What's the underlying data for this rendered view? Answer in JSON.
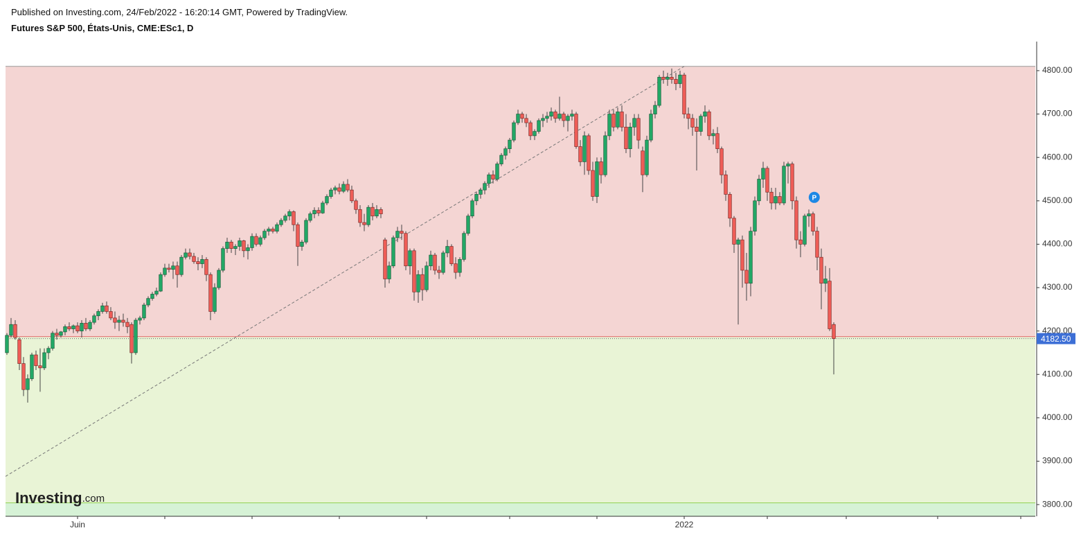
{
  "header": {
    "published": "Published on Investing.com, 24/Feb/2022 - 16:20:14 GMT, Powered by TradingView.",
    "instrument": "Futures S&P 500, États-Unis, CME:ESc1, D"
  },
  "logo": {
    "brand": "Investing",
    "suffix": ".com"
  },
  "chart_data": {
    "type": "candlestick",
    "open": [
      4150,
      4190,
      4215,
      4180,
      4125,
      4065,
      4090,
      4145,
      4120,
      4115,
      4150,
      4160,
      4195,
      4190,
      4198,
      4210,
      4205,
      4212,
      4200,
      4218,
      4205,
      4220,
      4235,
      4245,
      4258,
      4245,
      4230,
      4220,
      4225,
      4220,
      4215,
      4150,
      4225,
      4230,
      4260,
      4275,
      4285,
      4292,
      4330,
      4345,
      4342,
      4350,
      4330,
      4370,
      4380,
      4372,
      4360,
      4355,
      4365,
      4330,
      4245,
      4300,
      4340,
      4390,
      4405,
      4390,
      4395,
      4408,
      4385,
      4392,
      4418,
      4400,
      4415,
      4430,
      4435,
      4430,
      4445,
      4455,
      4465,
      4475,
      4445,
      4395,
      4405,
      4455,
      4470,
      4478,
      4472,
      4495,
      4510,
      4525,
      4530,
      4522,
      4538,
      4525,
      4500,
      4480,
      4450,
      4445,
      4485,
      4465,
      4480,
      4410,
      4320,
      4350,
      4415,
      4430,
      4425,
      4350,
      4385,
      4290,
      4330,
      4295,
      4350,
      4375,
      4340,
      4335,
      4380,
      4395,
      4355,
      4335,
      4365,
      4425,
      4465,
      4500,
      4515,
      4525,
      4540,
      4560,
      4550,
      4585,
      4605,
      4620,
      4640,
      4680,
      4700,
      4690,
      4680,
      4650,
      4660,
      4685,
      4690,
      4695,
      4705,
      4690,
      4700,
      4685,
      4695,
      4700,
      4625,
      4590,
      4650,
      4570,
      4510,
      4590,
      4560,
      4650,
      4700,
      4670,
      4705,
      4670,
      4620,
      4670,
      4690,
      4615,
      4560,
      4640,
      4700,
      4720,
      4785,
      4780,
      4785,
      4780,
      4770,
      4790,
      4700,
      4690,
      4670,
      4660,
      4695,
      4705,
      4650,
      4655,
      4620,
      4560,
      4515,
      4460,
      4400,
      4410,
      4340,
      4310,
      4430,
      4500,
      4550,
      4575,
      4520,
      4495,
      4510,
      4495,
      4580,
      4585,
      4500,
      4410,
      4400,
      4465,
      4470,
      4430,
      4370,
      4310,
      4315,
      4215
    ],
    "high": [
      4195,
      4230,
      4225,
      4185,
      4140,
      4100,
      4150,
      4155,
      4160,
      4160,
      4165,
      4200,
      4205,
      4200,
      4215,
      4220,
      4215,
      4220,
      4225,
      4230,
      4225,
      4240,
      4250,
      4265,
      4268,
      4255,
      4245,
      4235,
      4240,
      4230,
      4220,
      4230,
      4235,
      4265,
      4280,
      4290,
      4300,
      4335,
      4355,
      4355,
      4360,
      4360,
      4375,
      4390,
      4390,
      4380,
      4370,
      4375,
      4370,
      4335,
      4310,
      4345,
      4395,
      4415,
      4410,
      4400,
      4415,
      4410,
      4400,
      4425,
      4425,
      4420,
      4435,
      4440,
      4440,
      4450,
      4460,
      4470,
      4480,
      4478,
      4450,
      4410,
      4460,
      4475,
      4485,
      4485,
      4500,
      4515,
      4530,
      4535,
      4540,
      4545,
      4550,
      4535,
      4505,
      4490,
      4470,
      4490,
      4495,
      4490,
      4485,
      4415,
      4360,
      4420,
      4440,
      4445,
      4430,
      4390,
      4390,
      4340,
      4345,
      4360,
      4385,
      4380,
      4350,
      4385,
      4410,
      4400,
      4370,
      4370,
      4430,
      4470,
      4505,
      4520,
      4530,
      4545,
      4565,
      4570,
      4590,
      4610,
      4625,
      4645,
      4685,
      4710,
      4705,
      4700,
      4685,
      4665,
      4690,
      4700,
      4705,
      4715,
      4710,
      4740,
      4705,
      4700,
      4710,
      4705,
      4640,
      4660,
      4655,
      4590,
      4600,
      4600,
      4660,
      4710,
      4710,
      4715,
      4720,
      4700,
      4680,
      4700,
      4700,
      4625,
      4650,
      4710,
      4730,
      4790,
      4800,
      4795,
      4805,
      4795,
      4800,
      4795,
      4715,
      4700,
      4690,
      4700,
      4720,
      4710,
      4665,
      4670,
      4625,
      4570,
      4520,
      4465,
      4415,
      4420,
      4380,
      4440,
      4510,
      4560,
      4590,
      4580,
      4530,
      4530,
      4520,
      4590,
      4590,
      4590,
      4510,
      4430,
      4470,
      4480,
      4475,
      4440,
      4390,
      4350,
      4345,
      4220
    ],
    "low": [
      4145,
      4185,
      4180,
      4110,
      4050,
      4035,
      4085,
      4110,
      4060,
      4110,
      4135,
      4155,
      4180,
      4185,
      4190,
      4200,
      4195,
      4195,
      4185,
      4200,
      4200,
      4215,
      4225,
      4240,
      4240,
      4225,
      4205,
      4200,
      4210,
      4195,
      4125,
      4145,
      4215,
      4225,
      4255,
      4270,
      4280,
      4290,
      4325,
      4335,
      4320,
      4300,
      4325,
      4365,
      4365,
      4355,
      4340,
      4345,
      4315,
      4225,
      4240,
      4295,
      4335,
      4380,
      4380,
      4375,
      4385,
      4370,
      4365,
      4385,
      4395,
      4395,
      4410,
      4420,
      4425,
      4425,
      4440,
      4450,
      4455,
      4430,
      4350,
      4385,
      4400,
      4450,
      4460,
      4465,
      4470,
      4490,
      4505,
      4515,
      4515,
      4518,
      4520,
      4495,
      4470,
      4440,
      4430,
      4440,
      4455,
      4460,
      4460,
      4300,
      4310,
      4345,
      4405,
      4410,
      4340,
      4330,
      4270,
      4265,
      4270,
      4290,
      4340,
      4330,
      4320,
      4330,
      4370,
      4350,
      4320,
      4325,
      4360,
      4420,
      4460,
      4490,
      4505,
      4515,
      4530,
      4540,
      4545,
      4580,
      4595,
      4610,
      4635,
      4675,
      4680,
      4670,
      4640,
      4640,
      4655,
      4670,
      4680,
      4685,
      4680,
      4685,
      4670,
      4660,
      4685,
      4620,
      4580,
      4560,
      4560,
      4500,
      4495,
      4540,
      4555,
      4640,
      4660,
      4665,
      4660,
      4610,
      4600,
      4650,
      4620,
      4520,
      4555,
      4635,
      4690,
      4715,
      4770,
      4765,
      4770,
      4755,
      4760,
      4690,
      4665,
      4650,
      4570,
      4650,
      4680,
      4640,
      4630,
      4610,
      4540,
      4500,
      4440,
      4380,
      4215,
      4300,
      4270,
      4280,
      4420,
      4490,
      4530,
      4500,
      4480,
      4480,
      4490,
      4490,
      4540,
      4480,
      4390,
      4370,
      4395,
      4440,
      4420,
      4340,
      4250,
      4290,
      4200,
      4100
    ],
    "close": [
      4190,
      4215,
      4185,
      4125,
      4065,
      4090,
      4145,
      4120,
      4115,
      4150,
      4160,
      4195,
      4190,
      4198,
      4210,
      4205,
      4212,
      4200,
      4218,
      4205,
      4220,
      4235,
      4245,
      4258,
      4245,
      4230,
      4220,
      4225,
      4220,
      4210,
      4150,
      4225,
      4230,
      4260,
      4275,
      4285,
      4292,
      4330,
      4345,
      4342,
      4350,
      4330,
      4370,
      4380,
      4372,
      4360,
      4355,
      4365,
      4330,
      4245,
      4300,
      4340,
      4390,
      4405,
      4390,
      4395,
      4408,
      4385,
      4392,
      4418,
      4400,
      4415,
      4430,
      4435,
      4430,
      4445,
      4455,
      4465,
      4475,
      4445,
      4395,
      4405,
      4455,
      4470,
      4478,
      4472,
      4495,
      4510,
      4525,
      4530,
      4522,
      4538,
      4525,
      4500,
      4480,
      4450,
      4445,
      4485,
      4465,
      4480,
      4470,
      4320,
      4350,
      4415,
      4430,
      4425,
      4350,
      4385,
      4290,
      4330,
      4295,
      4350,
      4375,
      4340,
      4335,
      4380,
      4395,
      4355,
      4335,
      4365,
      4425,
      4465,
      4500,
      4515,
      4525,
      4540,
      4560,
      4550,
      4585,
      4605,
      4620,
      4640,
      4680,
      4700,
      4690,
      4680,
      4650,
      4660,
      4685,
      4690,
      4695,
      4705,
      4690,
      4700,
      4685,
      4695,
      4700,
      4625,
      4590,
      4650,
      4570,
      4510,
      4590,
      4560,
      4650,
      4700,
      4670,
      4705,
      4670,
      4620,
      4670,
      4690,
      4640,
      4560,
      4640,
      4700,
      4720,
      4785,
      4780,
      4785,
      4780,
      4770,
      4790,
      4700,
      4690,
      4670,
      4660,
      4695,
      4705,
      4650,
      4655,
      4620,
      4560,
      4515,
      4460,
      4400,
      4410,
      4340,
      4310,
      4430,
      4500,
      4550,
      4575,
      4520,
      4495,
      4510,
      4495,
      4580,
      4585,
      4500,
      4410,
      4400,
      4465,
      4470,
      4430,
      4370,
      4310,
      4320,
      4205,
      4182.5
    ],
    "up_color": "#22a866",
    "down_color": "#ef5d57",
    "xlim": [
      -0.33,
      247.5
    ],
    "xticks": [
      {
        "value": 17,
        "label": "Juin"
      },
      {
        "value": 38,
        "label": null
      },
      {
        "value": 59,
        "label": null
      },
      {
        "value": 80,
        "label": null
      },
      {
        "value": 101,
        "label": null
      },
      {
        "value": 121,
        "label": null
      },
      {
        "value": 142,
        "label": null
      },
      {
        "value": 163,
        "label": "2022"
      },
      {
        "value": 183,
        "label": null
      },
      {
        "value": 202,
        "label": null
      },
      {
        "value": 224,
        "label": null
      },
      {
        "value": 244,
        "label": null
      }
    ],
    "ylim": [
      3773,
      4867
    ],
    "yticks": [
      {
        "value": 3800,
        "label": "3800.00"
      },
      {
        "value": 3900,
        "label": "3900.00"
      },
      {
        "value": 4000,
        "label": "4000.00"
      },
      {
        "value": 4100,
        "label": "4100.00"
      },
      {
        "value": 4200,
        "label": "4200.00"
      },
      {
        "value": 4300,
        "label": "4300.00"
      },
      {
        "value": 4400,
        "label": "4400.00"
      },
      {
        "value": 4500,
        "label": "4500.00"
      },
      {
        "value": 4600,
        "label": "4600.00"
      },
      {
        "value": 4700,
        "label": "4700.00"
      },
      {
        "value": 4800,
        "label": "4800.00"
      }
    ],
    "zones": [
      {
        "top": 4810,
        "bottom": 4187,
        "color": "#f4d5d3",
        "line": "#e06464"
      },
      {
        "top": 4187,
        "bottom": 3804,
        "color": "#e9f4d6",
        "line": "#8fd14f"
      },
      {
        "top": 3804,
        "bottom": 3773,
        "color": "#d6f2d6",
        "line": "#8fd14f"
      }
    ],
    "trendline": {
      "start": [
        -0.33,
        3865
      ],
      "end": [
        163,
        4810
      ],
      "color": "#777"
    },
    "last_price": {
      "value": 4182.5,
      "label": "4182.50",
      "color": "#3d6fd6"
    },
    "marker": {
      "label": "P",
      "x": 194.3,
      "value": 4508,
      "color": "#1e88e5"
    }
  }
}
